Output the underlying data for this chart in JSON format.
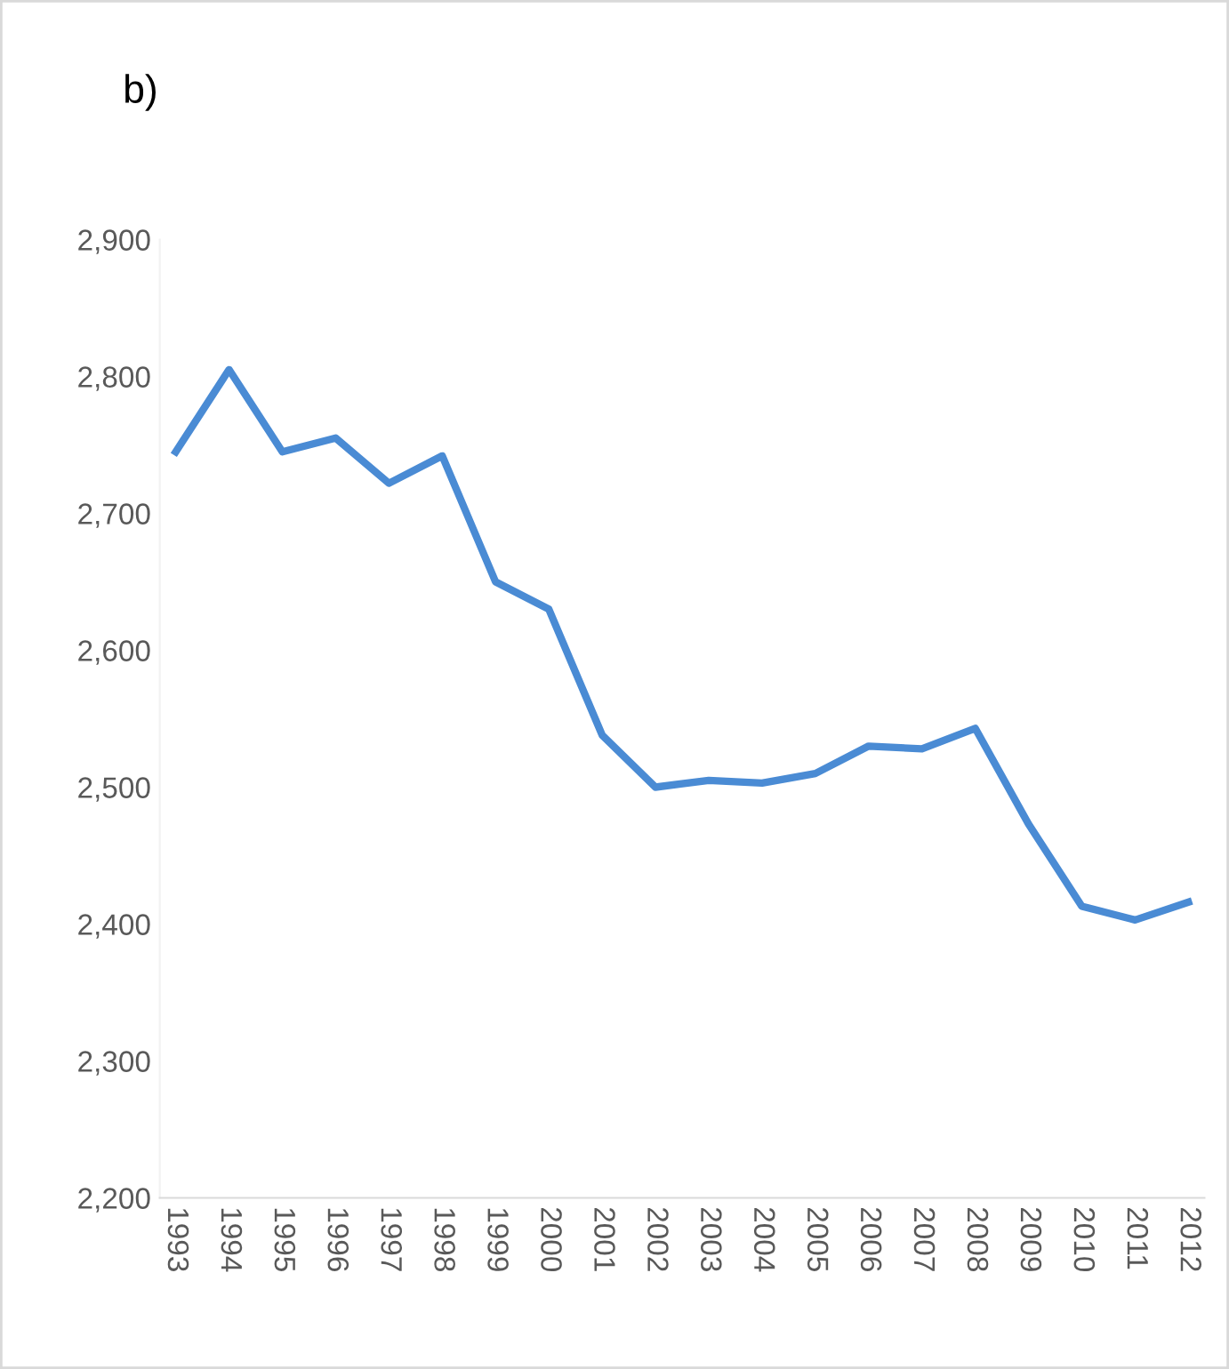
{
  "chart_data": {
    "type": "line",
    "categories": [
      "1993",
      "1994",
      "1995",
      "1996",
      "1997",
      "1998",
      "1999",
      "2000",
      "2001",
      "2002",
      "2003",
      "2004",
      "2005",
      "2006",
      "2007",
      "2008",
      "2009",
      "2010",
      "2011",
      "2012"
    ],
    "values": [
      2745,
      2805,
      2745,
      2755,
      2722,
      2742,
      2650,
      2630,
      2538,
      2500,
      2505,
      2503,
      2510,
      2530,
      2528,
      2543,
      2473,
      2413,
      2403,
      2416
    ],
    "color": "#4a8bd4",
    "ylim": [
      2200,
      2900
    ],
    "yticks": [
      {
        "value": 2200,
        "label": "2,200"
      },
      {
        "value": 2300,
        "label": "2,300"
      },
      {
        "value": 2400,
        "label": "2,400"
      },
      {
        "value": 2500,
        "label": "2,500"
      },
      {
        "value": 2600,
        "label": "2,600"
      },
      {
        "value": 2700,
        "label": "2,700"
      },
      {
        "value": 2800,
        "label": "2,800"
      },
      {
        "value": 2900,
        "label": "2,900"
      }
    ],
    "annotations": [
      "b)"
    ],
    "grid": false,
    "line_style": "solid"
  }
}
